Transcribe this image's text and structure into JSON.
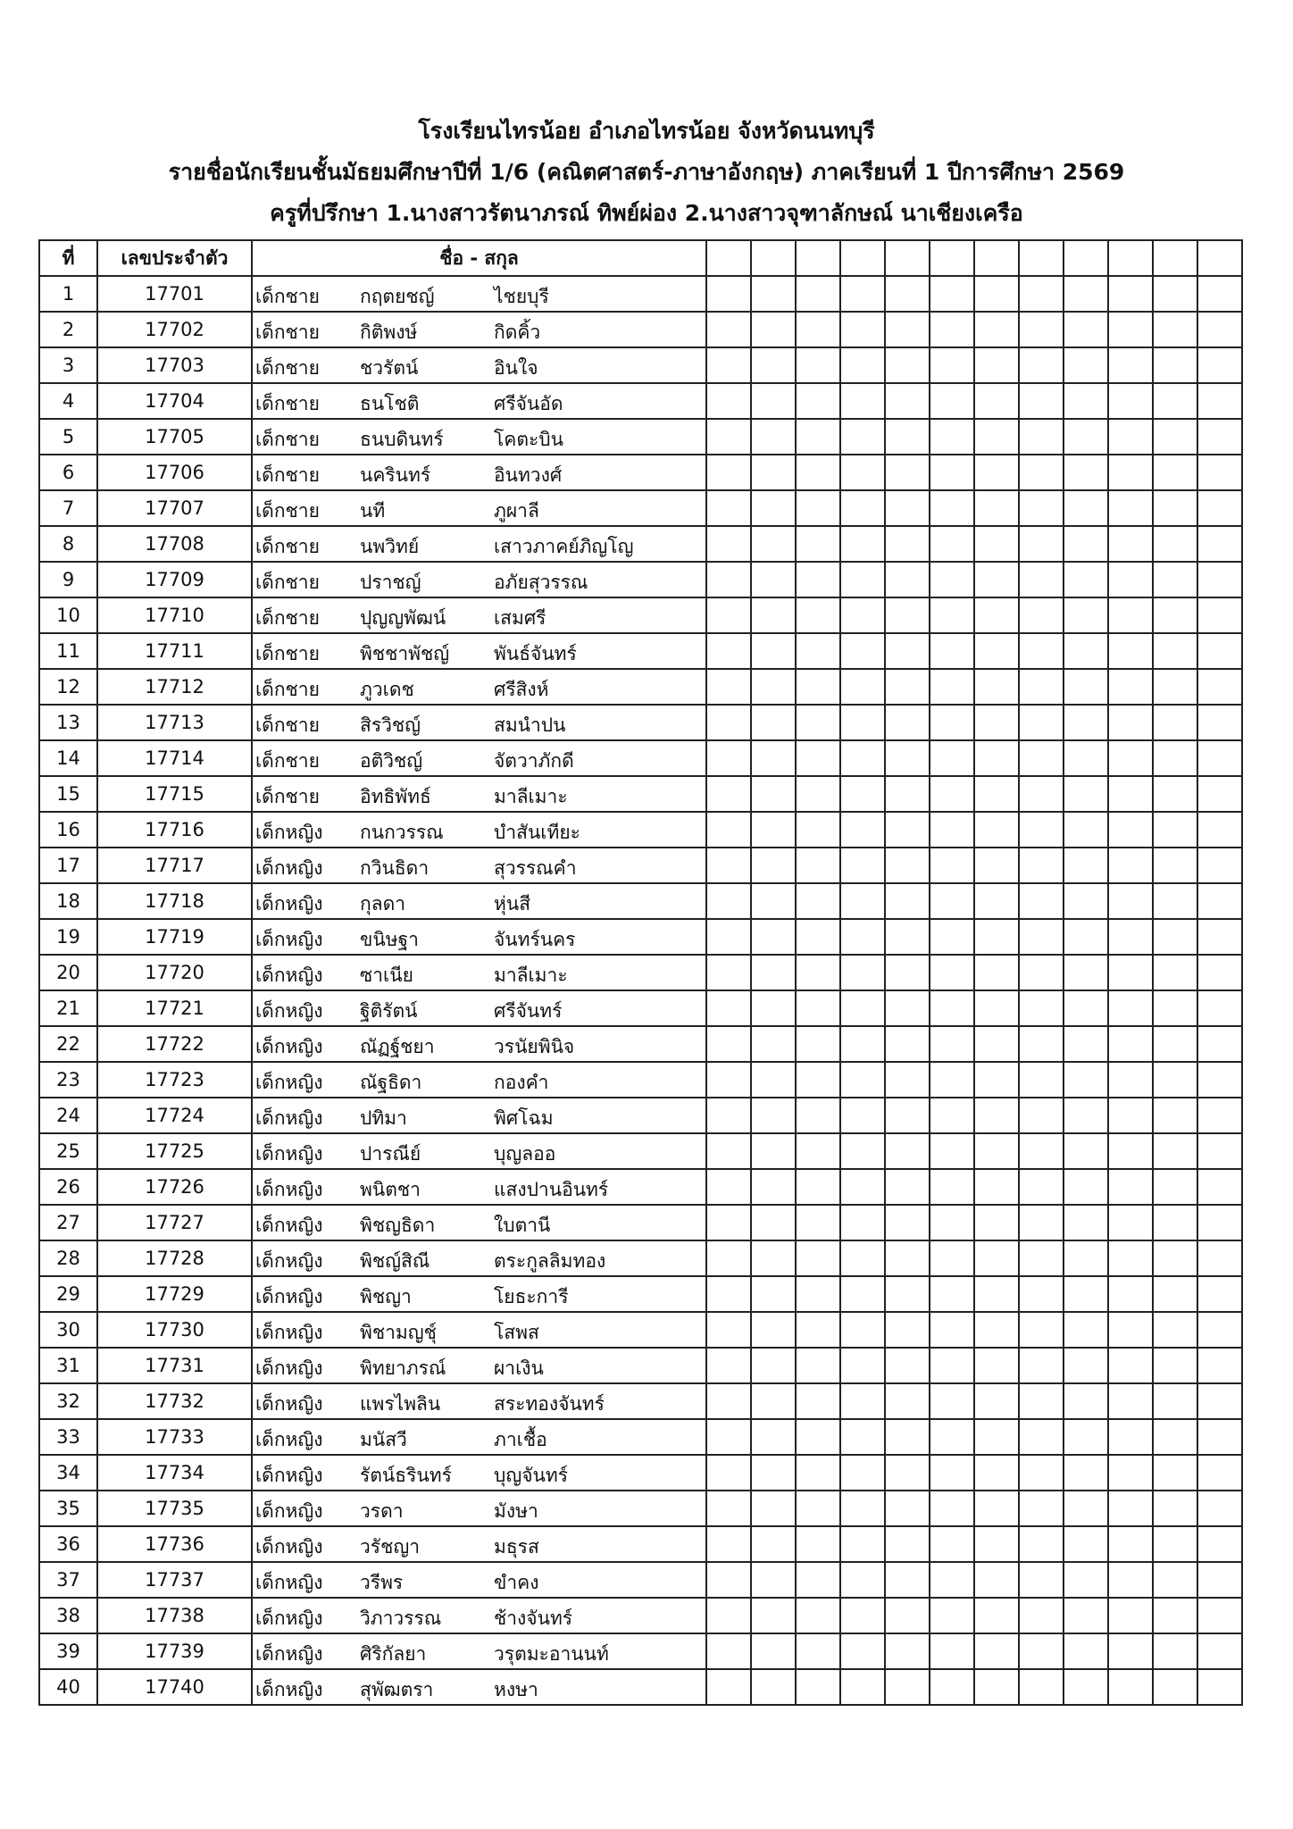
{
  "header": {
    "school": "โรงเรียนไทรน้อย  อำเภอไทรน้อย  จังหวัดนนทบุรี",
    "subtitle": "รายชื่อนักเรียนชั้นมัธยมศึกษาปีที่ 1/6 (คณิตศาสตร์-ภาษาอังกฤษ) ภาคเรียนที่ 1 ปีการศึกษา 2569",
    "advisors": "ครูที่ปรึกษา  1.นางสาวรัตนาภรณ์ ทิพย์ผ่อง  2.นางสาวจุฑาลักษณ์ นาเชียงเครือ"
  },
  "table": {
    "columns": {
      "no": "ที่",
      "id": "เลขประจำตัว",
      "name": "ชื่อ - สกุล"
    },
    "rows": [
      {
        "no": "1",
        "id": "17701",
        "prefix": "เด็กชาย",
        "first": "กฤตยชญ์",
        "last": "ไชยบุรี"
      },
      {
        "no": "2",
        "id": "17702",
        "prefix": "เด็กชาย",
        "first": "กิติพงษ์",
        "last": "กิดคิ้ว"
      },
      {
        "no": "3",
        "id": "17703",
        "prefix": "เด็กชาย",
        "first": "ชวรัตน์",
        "last": "อินใจ"
      },
      {
        "no": "4",
        "id": "17704",
        "prefix": "เด็กชาย",
        "first": "ธนโชติ",
        "last": "ศรีจันอัด"
      },
      {
        "no": "5",
        "id": "17705",
        "prefix": "เด็กชาย",
        "first": "ธนบดินทร์",
        "last": "โคตะบิน"
      },
      {
        "no": "6",
        "id": "17706",
        "prefix": "เด็กชาย",
        "first": "นครินทร์",
        "last": "อินทวงศ์"
      },
      {
        "no": "7",
        "id": "17707",
        "prefix": "เด็กชาย",
        "first": "นที",
        "last": "ภูผาลี"
      },
      {
        "no": "8",
        "id": "17708",
        "prefix": "เด็กชาย",
        "first": "นพวิทย์",
        "last": "เสาวภาคย์ภิญโญ"
      },
      {
        "no": "9",
        "id": "17709",
        "prefix": "เด็กชาย",
        "first": "ปราชญ์",
        "last": "อภัยสุวรรณ"
      },
      {
        "no": "10",
        "id": "17710",
        "prefix": "เด็กชาย",
        "first": "ปุญญพัฒน์",
        "last": "เสมศรี"
      },
      {
        "no": "11",
        "id": "17711",
        "prefix": "เด็กชาย",
        "first": "พิชชาพัชญ์",
        "last": "พันธ์จันทร์"
      },
      {
        "no": "12",
        "id": "17712",
        "prefix": "เด็กชาย",
        "first": "ภูวเดช",
        "last": "ศรีสิงห์"
      },
      {
        "no": "13",
        "id": "17713",
        "prefix": "เด็กชาย",
        "first": "สิรวิชญ์",
        "last": "สมนำปน"
      },
      {
        "no": "14",
        "id": "17714",
        "prefix": "เด็กชาย",
        "first": "อติวิชญ์",
        "last": "จัตวาภักดี"
      },
      {
        "no": "15",
        "id": "17715",
        "prefix": "เด็กชาย",
        "first": "อิทธิพัทธ์",
        "last": "มาลีเมาะ"
      },
      {
        "no": "16",
        "id": "17716",
        "prefix": "เด็กหญิง",
        "first": "กนกวรรณ",
        "last": "บำสันเทียะ"
      },
      {
        "no": "17",
        "id": "17717",
        "prefix": "เด็กหญิง",
        "first": "กวินธิดา",
        "last": "สุวรรณคำ"
      },
      {
        "no": "18",
        "id": "17718",
        "prefix": "เด็กหญิง",
        "first": "กุลดา",
        "last": "หุ่นสี"
      },
      {
        "no": "19",
        "id": "17719",
        "prefix": "เด็กหญิง",
        "first": "ขนิษฐา",
        "last": "จันทร์นคร"
      },
      {
        "no": "20",
        "id": "17720",
        "prefix": "เด็กหญิง",
        "first": "ซาเนีย",
        "last": "มาลีเมาะ"
      },
      {
        "no": "21",
        "id": "17721",
        "prefix": "เด็กหญิง",
        "first": "ฐิติรัตน์",
        "last": "ศรีจันทร์"
      },
      {
        "no": "22",
        "id": "17722",
        "prefix": "เด็กหญิง",
        "first": "ณัฏฐ์ชยา",
        "last": "วรนัยพินิจ"
      },
      {
        "no": "23",
        "id": "17723",
        "prefix": "เด็กหญิง",
        "first": "ณัฐธิดา",
        "last": "กองคำ"
      },
      {
        "no": "24",
        "id": "17724",
        "prefix": "เด็กหญิง",
        "first": "ปทิมา",
        "last": "พิศโฉม"
      },
      {
        "no": "25",
        "id": "17725",
        "prefix": "เด็กหญิง",
        "first": "ปารณีย์",
        "last": "บุญลออ"
      },
      {
        "no": "26",
        "id": "17726",
        "prefix": "เด็กหญิง",
        "first": "พนิตชา",
        "last": "แสงปานอินทร์"
      },
      {
        "no": "27",
        "id": "17727",
        "prefix": "เด็กหญิง",
        "first": "พิชญธิดา",
        "last": "ใบตานี"
      },
      {
        "no": "28",
        "id": "17728",
        "prefix": "เด็กหญิง",
        "first": "พิชญ์สิณี",
        "last": "ตระกูลลิมทอง"
      },
      {
        "no": "29",
        "id": "17729",
        "prefix": "เด็กหญิง",
        "first": "พิชญา",
        "last": "โยธะการี"
      },
      {
        "no": "30",
        "id": "17730",
        "prefix": "เด็กหญิง",
        "first": "พิชามญชุ์",
        "last": "โสพส"
      },
      {
        "no": "31",
        "id": "17731",
        "prefix": "เด็กหญิง",
        "first": "พิทยาภรณ์",
        "last": "ผาเงิน"
      },
      {
        "no": "32",
        "id": "17732",
        "prefix": "เด็กหญิง",
        "first": "แพรไพลิน",
        "last": "สระทองจันทร์"
      },
      {
        "no": "33",
        "id": "17733",
        "prefix": "เด็กหญิง",
        "first": "มนัสวี",
        "last": "ภาเชื้อ"
      },
      {
        "no": "34",
        "id": "17734",
        "prefix": "เด็กหญิง",
        "first": "รัตน์ธรินทร์",
        "last": "บุญจันทร์"
      },
      {
        "no": "35",
        "id": "17735",
        "prefix": "เด็กหญิง",
        "first": "วรดา",
        "last": "มังษา"
      },
      {
        "no": "36",
        "id": "17736",
        "prefix": "เด็กหญิง",
        "first": "วรัชญา",
        "last": "มธุรส"
      },
      {
        "no": "37",
        "id": "17737",
        "prefix": "เด็กหญิง",
        "first": "วรีพร",
        "last": "ขำคง"
      },
      {
        "no": "38",
        "id": "17738",
        "prefix": "เด็กหญิง",
        "first": "วิภาวรรณ",
        "last": "ช้างจันทร์"
      },
      {
        "no": "39",
        "id": "17739",
        "prefix": "เด็กหญิง",
        "first": "ศิริกัลยา",
        "last": "วรุตมะอานนท์"
      },
      {
        "no": "40",
        "id": "17740",
        "prefix": "เด็กหญิง",
        "first": "สุพัฒตรา",
        "last": "หงษา"
      }
    ]
  }
}
